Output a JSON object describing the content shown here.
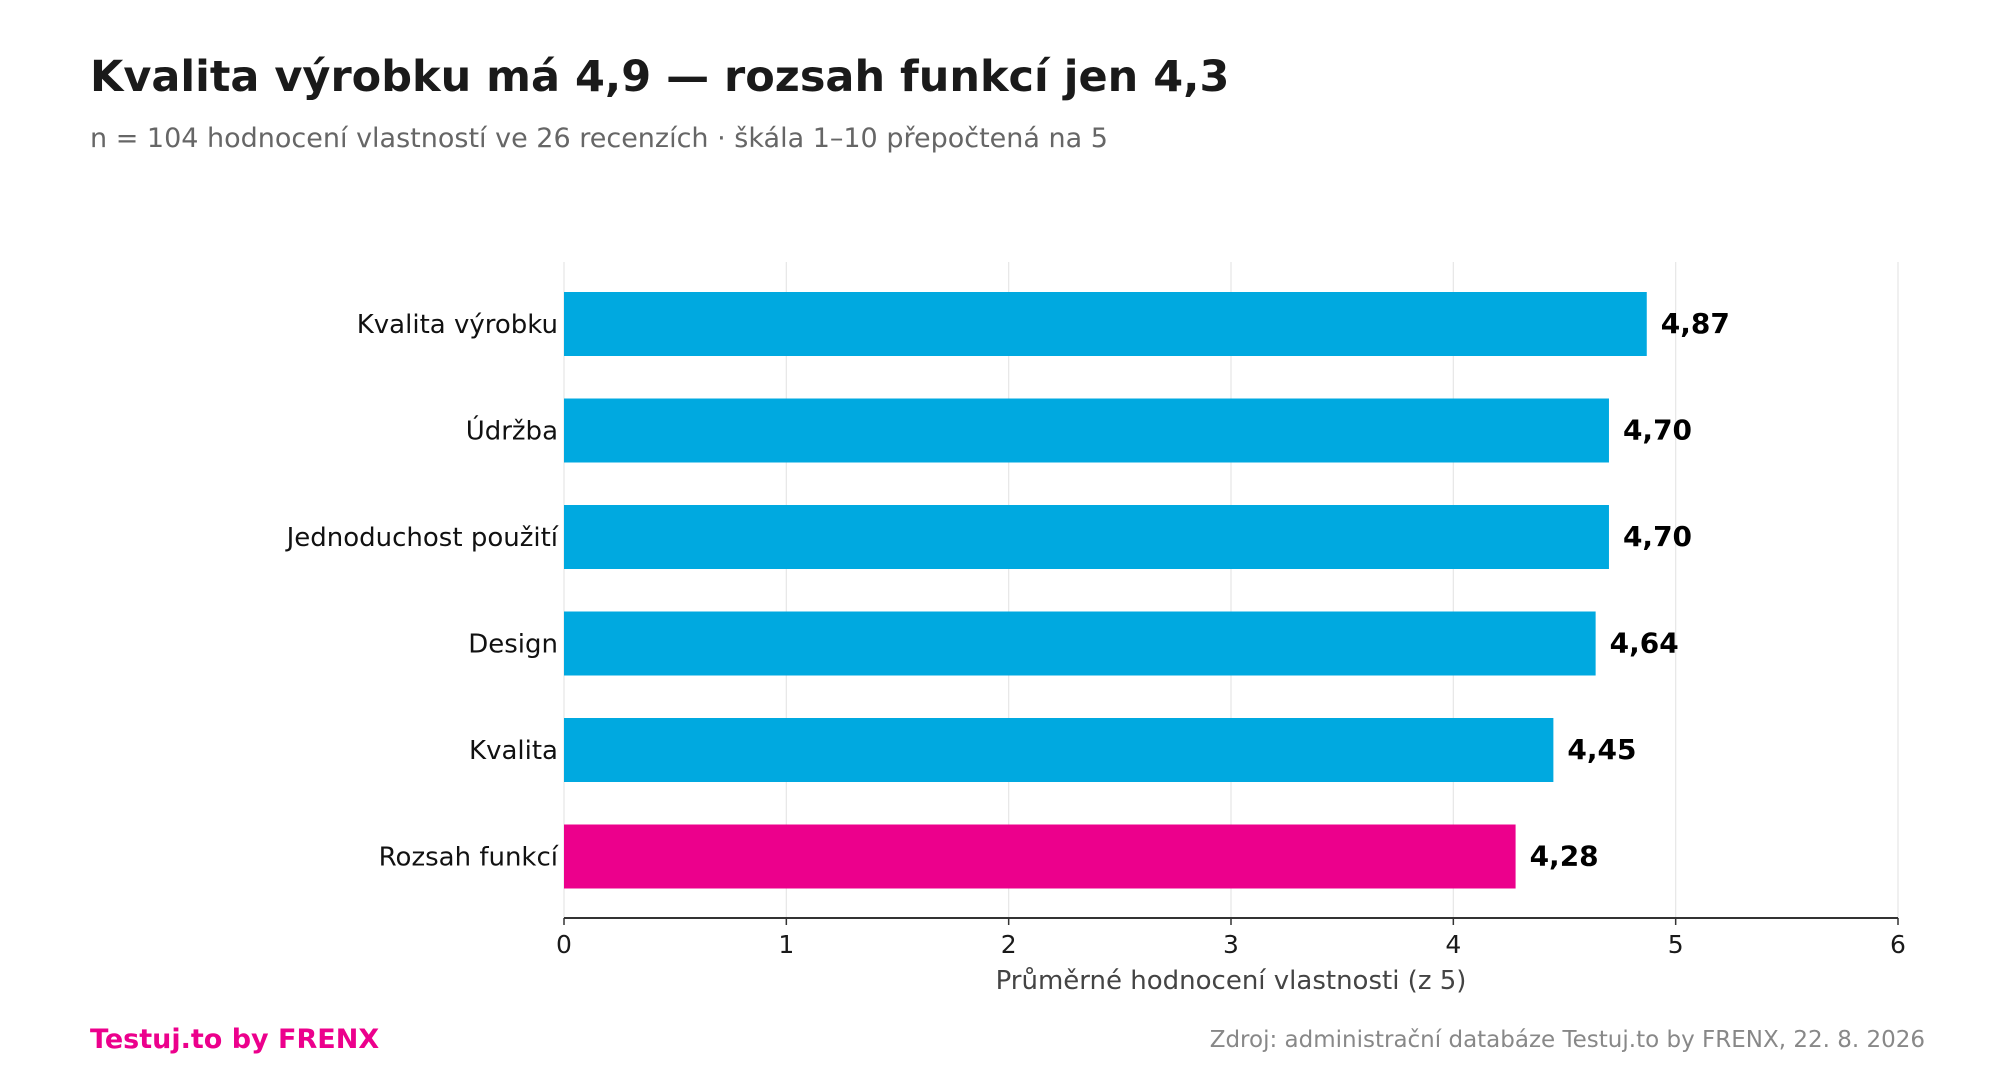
{
  "title": "Kvalita výrobku má 4,9 — rozsah funkcí jen 4,3",
  "subtitle": "n = 104 hodnocení vlastností ve 26 recenzích · škála 1–10 přepočtená na 5",
  "footer": {
    "brand": "Testuj.to by FRENX",
    "source": "Zdroj: administrační databáze Testuj.to by FRENX, 22. 8. 2026"
  },
  "colors": {
    "bar": "#00a9e0",
    "highlight": "#ec008c",
    "grid": "#e6e6e6",
    "axis": "#333333",
    "text": "#1a1a1a",
    "label": "#111111",
    "axis_title": "#444444"
  },
  "chart_data": {
    "type": "bar",
    "orientation": "horizontal",
    "categories": [
      "Kvalita výrobku",
      "Údržba",
      "Jednoduchost použití",
      "Design",
      "Kvalita",
      "Rozsah funkcí"
    ],
    "values": [
      4.87,
      4.7,
      4.7,
      4.64,
      4.45,
      4.28
    ],
    "value_labels": [
      "4,87",
      "4,70",
      "4,70",
      "4,64",
      "4,45",
      "4,28"
    ],
    "highlight": [
      "Rozsah funkcí"
    ],
    "xlabel": "Průměrné hodnocení vlastnosti (z 5)",
    "ylabel": "",
    "xlim": [
      0,
      6
    ],
    "xticks": [
      0,
      1,
      2,
      3,
      4,
      5,
      6
    ],
    "xtick_labels": [
      "0",
      "1",
      "2",
      "3",
      "4",
      "5",
      "6"
    ],
    "grid": true,
    "legend": "none"
  }
}
